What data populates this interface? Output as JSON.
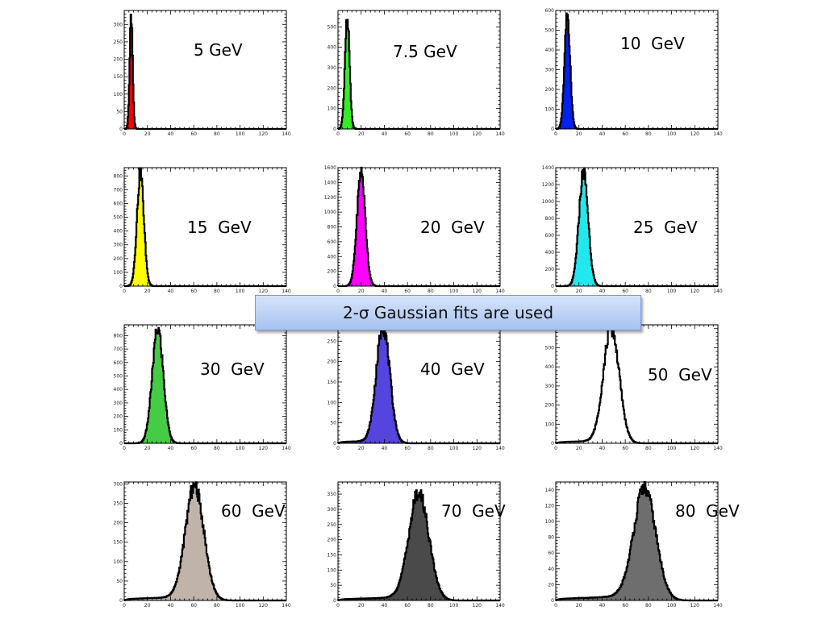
{
  "banner": {
    "text": "2-σ Gaussian fits are used",
    "color": "#b7cff5"
  },
  "chart_data": [
    {
      "type": "bar",
      "title": "5 GeV",
      "label": "5 GeV",
      "fill": "#ff0000",
      "outline": "#000000",
      "mean": 6,
      "sigma": 1.3,
      "peak": 320,
      "tail": 0.0,
      "xlim": [
        0,
        140
      ],
      "ylim": [
        0,
        340
      ],
      "yticks": [
        0,
        50,
        100,
        150,
        200,
        250,
        300
      ],
      "xticks": [
        0,
        20,
        40,
        60,
        80,
        100,
        120,
        140
      ]
    },
    {
      "type": "bar",
      "title": "7.5 GeV",
      "label": "7.5 GeV",
      "fill": "#33ee22",
      "outline": "#000000",
      "mean": 8,
      "sigma": 2.0,
      "peak": 545,
      "tail": 0.0,
      "xlim": [
        0,
        140
      ],
      "ylim": [
        0,
        580
      ],
      "yticks": [
        0,
        100,
        200,
        300,
        400,
        500
      ],
      "xticks": [
        0,
        20,
        40,
        60,
        80,
        100,
        120,
        140
      ]
    },
    {
      "type": "bar",
      "title": "10 GeV",
      "label": "10  GeV",
      "fill": "#0022ee",
      "outline": "#000000",
      "mean": 10,
      "sigma": 2.4,
      "peak": 580,
      "tail": 0.0,
      "xlim": [
        0,
        140
      ],
      "ylim": [
        0,
        600
      ],
      "yticks": [
        0,
        100,
        200,
        300,
        400,
        500,
        600
      ],
      "xticks": [
        0,
        20,
        40,
        60,
        80,
        100,
        120,
        140
      ]
    },
    {
      "type": "bar",
      "title": "15 GeV",
      "label": "15  GeV",
      "fill": "#ffff00",
      "outline": "#000000",
      "mean": 14,
      "sigma": 3.0,
      "peak": 820,
      "tail": 0.0,
      "xlim": [
        0,
        140
      ],
      "ylim": [
        0,
        860
      ],
      "yticks": [
        0,
        100,
        200,
        300,
        400,
        500,
        600,
        700,
        800
      ],
      "xticks": [
        0,
        20,
        40,
        60,
        80,
        100,
        120,
        140
      ]
    },
    {
      "type": "bar",
      "title": "20 GeV",
      "label": "20  GeV",
      "fill": "#ff00ff",
      "outline": "#000000",
      "mean": 20,
      "sigma": 3.6,
      "peak": 1550,
      "tail": 0.0,
      "xlim": [
        0,
        140
      ],
      "ylim": [
        0,
        1600
      ],
      "yticks": [
        0,
        200,
        400,
        600,
        800,
        1000,
        1200,
        1400,
        1600
      ],
      "xticks": [
        0,
        20,
        40,
        60,
        80,
        100,
        120,
        140
      ]
    },
    {
      "type": "bar",
      "title": "25 GeV",
      "label": "25  GeV",
      "fill": "#22e8ee",
      "outline": "#000000",
      "mean": 24,
      "sigma": 4.0,
      "peak": 1350,
      "tail": 0.0,
      "xlim": [
        0,
        140
      ],
      "ylim": [
        0,
        1400
      ],
      "yticks": [
        0,
        200,
        400,
        600,
        800,
        1000,
        1200,
        1400
      ],
      "xticks": [
        0,
        20,
        40,
        60,
        80,
        100,
        120,
        140
      ]
    },
    {
      "type": "bar",
      "title": "30 GeV",
      "label": "30  GeV",
      "fill": "#44cc44",
      "outline": "#000000",
      "mean": 29,
      "sigma": 4.8,
      "peak": 850,
      "tail": 0.0,
      "xlim": [
        0,
        140
      ],
      "ylim": [
        0,
        880
      ],
      "yticks": [
        0,
        100,
        200,
        300,
        400,
        500,
        600,
        700,
        800
      ],
      "xticks": [
        0,
        20,
        40,
        60,
        80,
        100,
        120,
        140
      ]
    },
    {
      "type": "bar",
      "title": "40 GeV",
      "label": "40  GeV",
      "fill": "#5544dd",
      "outline": "#000000",
      "mean": 39,
      "sigma": 5.8,
      "peak": 285,
      "tail": 0.02,
      "xlim": [
        0,
        140
      ],
      "ylim": [
        0,
        290
      ],
      "yticks": [
        0,
        50,
        100,
        150,
        200,
        250
      ],
      "xticks": [
        0,
        20,
        40,
        60,
        80,
        100,
        120,
        140
      ]
    },
    {
      "type": "bar",
      "title": "50 GeV",
      "label": "50  GeV",
      "fill": "#ffffff",
      "outline": "#000000",
      "mean": 48,
      "sigma": 6.8,
      "peak": 600,
      "tail": 0.02,
      "xlim": [
        0,
        140
      ],
      "ylim": [
        0,
        620
      ],
      "yticks": [
        0,
        100,
        200,
        300,
        400,
        500,
        600
      ],
      "xticks": [
        0,
        20,
        40,
        60,
        80,
        100,
        120,
        140
      ]
    },
    {
      "type": "bar",
      "title": "60 GeV",
      "label": "60  GeV",
      "fill": "#c0b4aa",
      "outline": "#000000",
      "mean": 61,
      "sigma": 8.0,
      "peak": 290,
      "tail": 0.03,
      "xlim": [
        0,
        140
      ],
      "ylim": [
        0,
        305
      ],
      "yticks": [
        0,
        50,
        100,
        150,
        200,
        250,
        300
      ],
      "xticks": [
        0,
        20,
        40,
        60,
        80,
        100,
        120,
        140
      ]
    },
    {
      "type": "bar",
      "title": "70 GeV",
      "label": "70  GeV",
      "fill": "#4a4a4a",
      "outline": "#000000",
      "mean": 70,
      "sigma": 8.6,
      "peak": 350,
      "tail": 0.03,
      "xlim": [
        0,
        140
      ],
      "ylim": [
        0,
        390
      ],
      "yticks": [
        0,
        50,
        100,
        150,
        200,
        250,
        300,
        350
      ],
      "xticks": [
        0,
        20,
        40,
        60,
        80,
        100,
        120,
        140
      ]
    },
    {
      "type": "bar",
      "title": "80 GeV",
      "label": "80  GeV",
      "fill": "#6e6e6e",
      "outline": "#000000",
      "mean": 77,
      "sigma": 9.5,
      "peak": 140,
      "tail": 0.04,
      "xlim": [
        0,
        140
      ],
      "ylim": [
        0,
        150
      ],
      "yticks": [
        0,
        20,
        40,
        60,
        80,
        100,
        120,
        140
      ],
      "xticks": [
        0,
        20,
        40,
        60,
        80,
        100,
        120,
        140
      ]
    }
  ]
}
